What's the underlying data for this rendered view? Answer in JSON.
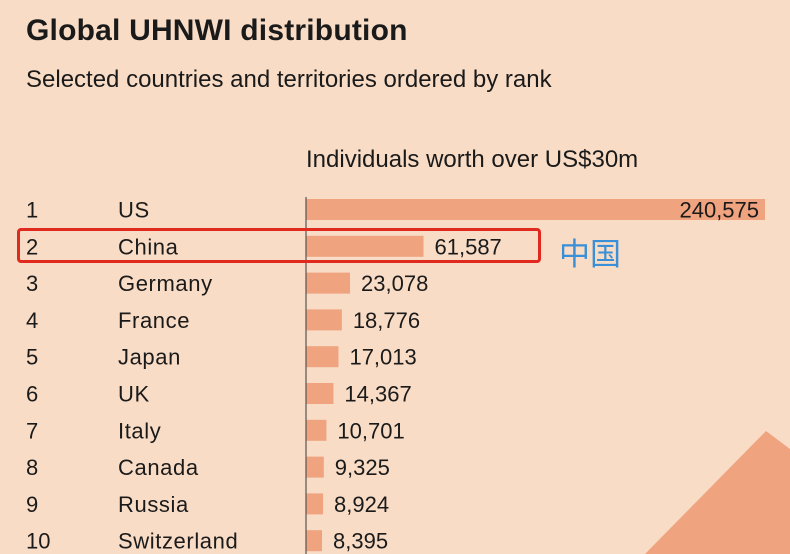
{
  "header": {
    "title": "Global UHNWI distribution",
    "subtitle": "Selected countries and territories ordered by rank",
    "value_header": "Individuals worth over US$30m"
  },
  "annotation": {
    "text": "中国",
    "color": "#3a8fd6",
    "highlight_color": "#e02a1f"
  },
  "colors": {
    "background": "#f8dcc6",
    "bar": "#efa37f",
    "axis": "#555555",
    "accent_shape": "#efa37f"
  },
  "chart_data": {
    "type": "bar",
    "orientation": "horizontal",
    "title": "Global UHNWI distribution",
    "subtitle": "Selected countries and territories ordered by rank",
    "ylabel": "Individuals worth over US$30m",
    "ranks": [
      "1",
      "2",
      "3",
      "4",
      "5",
      "6",
      "7",
      "8",
      "9",
      "10"
    ],
    "categories": [
      "US",
      "China",
      "Germany",
      "France",
      "Japan",
      "UK",
      "Italy",
      "Canada",
      "Russia",
      "Switzerland"
    ],
    "values": [
      240575,
      61587,
      23078,
      18776,
      17013,
      14367,
      10701,
      9325,
      8924,
      8395
    ],
    "value_labels": [
      "240,575",
      "61,587",
      "23,078",
      "18,776",
      "17,013",
      "14,367",
      "10,701",
      "9,325",
      "8,924",
      "8,395"
    ],
    "xlim": [
      0,
      240575
    ],
    "highlighted_category": "China"
  }
}
